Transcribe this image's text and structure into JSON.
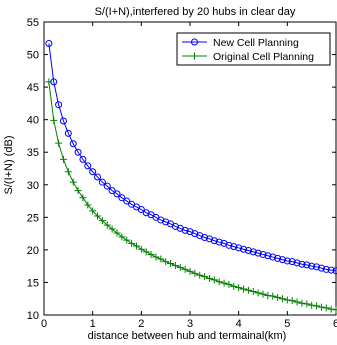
{
  "chart_data": {
    "type": "line",
    "title": "S/(I+N),interfered by 20 hubs in clear day",
    "xlabel": "distance between hub and termainal(km)",
    "ylabel": "S/(I+N) (dB)",
    "xlim": [
      0,
      6
    ],
    "ylim": [
      10,
      55
    ],
    "xticks": [
      0,
      1,
      2,
      3,
      4,
      5,
      6
    ],
    "yticks": [
      10,
      15,
      20,
      25,
      30,
      35,
      40,
      45,
      50,
      55
    ],
    "grid": false,
    "legend_position": "top-right",
    "x": [
      0.1,
      0.2,
      0.3,
      0.4,
      0.5,
      0.6,
      0.7,
      0.8,
      0.9,
      1.0,
      1.1,
      1.2,
      1.3,
      1.4,
      1.5,
      1.6,
      1.7,
      1.8,
      1.9,
      2.0,
      2.1,
      2.2,
      2.3,
      2.4,
      2.5,
      2.6,
      2.7,
      2.8,
      2.9,
      3.0,
      3.1,
      3.2,
      3.3,
      3.4,
      3.5,
      3.6,
      3.7,
      3.8,
      3.9,
      4.0,
      4.1,
      4.2,
      4.3,
      4.4,
      4.5,
      4.6,
      4.7,
      4.8,
      4.9,
      5.0,
      5.1,
      5.2,
      5.3,
      5.4,
      5.5,
      5.6,
      5.7,
      5.8,
      5.9,
      6.0
    ],
    "series": [
      {
        "name": "New Cell Planning",
        "color": "#0000ff",
        "marker": "circle",
        "values": [
          51.7,
          45.8,
          42.3,
          39.8,
          37.9,
          36.3,
          35.0,
          33.9,
          32.9,
          32.0,
          31.2,
          30.4,
          29.8,
          29.1,
          28.6,
          28.0,
          27.5,
          27.0,
          26.6,
          26.2,
          25.7,
          25.4,
          25.0,
          24.6,
          24.3,
          24.0,
          23.6,
          23.3,
          23.0,
          22.8,
          22.5,
          22.2,
          21.9,
          21.7,
          21.4,
          21.2,
          21.0,
          20.7,
          20.5,
          20.3,
          20.1,
          19.9,
          19.7,
          19.5,
          19.3,
          19.1,
          18.9,
          18.7,
          18.5,
          18.3,
          18.2,
          18.0,
          17.8,
          17.7,
          17.5,
          17.4,
          17.2,
          17.0,
          16.9,
          16.8
        ]
      },
      {
        "name": "Original Cell Planning",
        "color": "#008000",
        "marker": "plus",
        "values": [
          45.8,
          39.9,
          36.4,
          33.9,
          32.0,
          30.4,
          29.1,
          28.0,
          26.9,
          26.0,
          25.2,
          24.5,
          23.8,
          23.2,
          22.6,
          22.0,
          21.5,
          21.0,
          20.6,
          20.1,
          19.7,
          19.3,
          18.9,
          18.6,
          18.2,
          17.9,
          17.6,
          17.3,
          17.0,
          16.7,
          16.4,
          16.1,
          15.9,
          15.6,
          15.4,
          15.1,
          14.9,
          14.7,
          14.4,
          14.2,
          14.0,
          13.8,
          13.6,
          13.4,
          13.2,
          13.0,
          12.9,
          12.7,
          12.5,
          12.3,
          12.2,
          12.0,
          11.8,
          11.7,
          11.5,
          11.4,
          11.2,
          11.1,
          10.9,
          10.8
        ]
      }
    ]
  }
}
